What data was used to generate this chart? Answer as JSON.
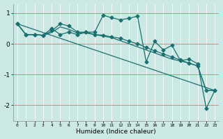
{
  "xlabel": "Humidex (Indice chaleur)",
  "bg_color": "#cce8e4",
  "line_color": "#1a7070",
  "grid_color": "#ffffff",
  "red_line_color": "#e08080",
  "xlim": [
    -0.5,
    23.5
  ],
  "ylim": [
    -2.5,
    1.3
  ],
  "yticks": [
    -2,
    -1,
    0,
    1
  ],
  "xticks": [
    0,
    1,
    2,
    3,
    4,
    5,
    6,
    7,
    8,
    9,
    10,
    11,
    12,
    13,
    14,
    15,
    16,
    17,
    18,
    19,
    20,
    21,
    22,
    23
  ],
  "series1_x": [
    0,
    1,
    2,
    3,
    4,
    5,
    6,
    7,
    8,
    9,
    10,
    11,
    12,
    13,
    14,
    15,
    16,
    17,
    18,
    19,
    20,
    21,
    22,
    23
  ],
  "series1_y": [
    0.65,
    0.3,
    0.3,
    0.28,
    0.42,
    0.65,
    0.58,
    0.38,
    0.38,
    0.38,
    0.93,
    0.85,
    0.78,
    0.83,
    0.9,
    -0.58,
    0.08,
    -0.2,
    -0.05,
    -0.55,
    -0.5,
    -0.65,
    -2.1,
    -1.52
  ],
  "series2_x": [
    0,
    1,
    2,
    3,
    4,
    5,
    6,
    7,
    8,
    9,
    10,
    11,
    12,
    13,
    14,
    15,
    16,
    17,
    18,
    19,
    20,
    21,
    22,
    23
  ],
  "series2_y": [
    0.65,
    0.3,
    0.3,
    0.28,
    0.5,
    0.3,
    0.38,
    0.3,
    0.38,
    0.3,
    0.28,
    0.22,
    0.18,
    0.08,
    0.0,
    -0.12,
    -0.23,
    -0.33,
    -0.43,
    -0.53,
    -0.63,
    -0.72,
    -1.52,
    -1.52
  ],
  "series3_x": [
    0,
    23
  ],
  "series3_y": [
    0.65,
    -1.52
  ],
  "series4_x": [
    0,
    1,
    2,
    3,
    4,
    5,
    6,
    7,
    8,
    9,
    10,
    11,
    12,
    13,
    14,
    15,
    16,
    17,
    18,
    19,
    20,
    21,
    22,
    23
  ],
  "series4_y": [
    0.65,
    0.3,
    0.3,
    0.27,
    0.37,
    0.55,
    0.47,
    0.35,
    0.35,
    0.3,
    0.25,
    0.2,
    0.1,
    0.0,
    -0.1,
    -0.2,
    -0.3,
    -0.4,
    -0.5,
    -0.56,
    -0.63,
    -0.72,
    -1.52,
    -1.52
  ]
}
